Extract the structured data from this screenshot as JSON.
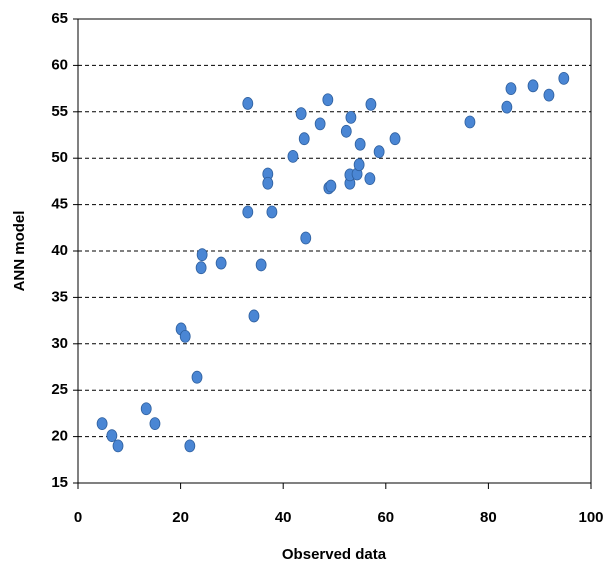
{
  "chart_data": {
    "type": "scatter",
    "x_label": "Observed data",
    "y_label": "ANN model",
    "xlim": [
      0,
      100
    ],
    "xticks": [
      0,
      20,
      40,
      60,
      80,
      100
    ],
    "ylim": [
      15,
      65
    ],
    "yticks": [
      15,
      20,
      25,
      30,
      35,
      40,
      45,
      50,
      55,
      60,
      65
    ],
    "grid": true,
    "color": "#4a86d4",
    "x": [
      4.7,
      6.6,
      7.8,
      13.3,
      15.0,
      21.8,
      23.2,
      20.1,
      20.9,
      24.0,
      24.2,
      27.9,
      34.3,
      35.7,
      33.1,
      33.1,
      37.0,
      37.0,
      37.8,
      44.4,
      41.9,
      43.5,
      44.1,
      47.2,
      48.7,
      48.9,
      49.3,
      52.3,
      53.2,
      53.0,
      53.0,
      54.4,
      54.8,
      55.0,
      57.1,
      56.9,
      58.7,
      61.8,
      76.4,
      83.6,
      84.4,
      88.7,
      91.8,
      94.7
    ],
    "y": [
      21.4,
      20.1,
      19.0,
      23.0,
      21.4,
      19.0,
      26.4,
      31.6,
      30.8,
      38.2,
      39.6,
      38.7,
      33.0,
      38.5,
      55.9,
      44.2,
      48.3,
      47.3,
      44.2,
      41.4,
      50.2,
      54.8,
      52.1,
      53.7,
      56.3,
      46.8,
      47.0,
      52.9,
      54.4,
      47.3,
      48.2,
      48.3,
      49.3,
      51.5,
      55.8,
      47.8,
      50.7,
      52.1,
      53.9,
      55.5,
      57.5,
      57.8,
      56.8,
      58.6
    ]
  }
}
